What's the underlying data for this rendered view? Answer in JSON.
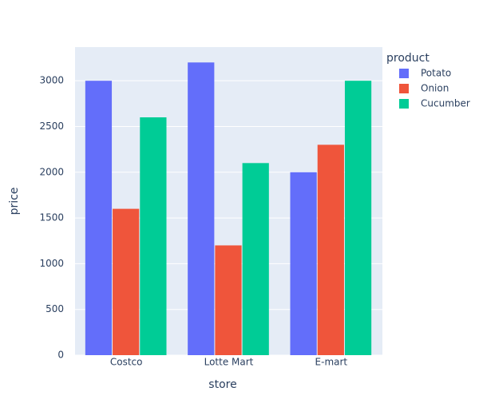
{
  "chart_data": {
    "type": "bar",
    "x_label": "store",
    "y_label": "price",
    "legend_title": "product",
    "categories": [
      "Costco",
      "Lotte Mart",
      "E-mart"
    ],
    "series": [
      {
        "name": "Potato",
        "color": "#636efa",
        "values": [
          3000,
          3200,
          2000
        ]
      },
      {
        "name": "Onion",
        "color": "#ef553b",
        "values": [
          1600,
          1200,
          2300
        ]
      },
      {
        "name": "Cucumber",
        "color": "#00cc96",
        "values": [
          2600,
          2100,
          3000
        ]
      }
    ],
    "ylim": [
      0,
      3368
    ],
    "yticks": [
      0,
      500,
      1000,
      1500,
      2000,
      2500,
      3000
    ],
    "grid": true,
    "legend": "right"
  }
}
